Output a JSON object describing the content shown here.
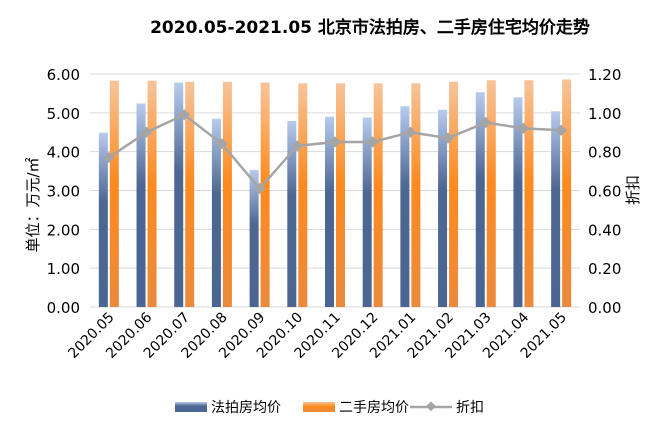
{
  "chart_data": {
    "type": "bar",
    "title": "2020.05-2021.05 北京市法拍房、二手房住宅均价走势",
    "ylabel": "单位：万元/㎡",
    "y2label": "折扣",
    "ylim": [
      0,
      6
    ],
    "y2lim": [
      0,
      1.2
    ],
    "yticks": [
      "0.00",
      "1.00",
      "2.00",
      "3.00",
      "4.00",
      "5.00",
      "6.00"
    ],
    "y2ticks": [
      "0.00",
      "0.20",
      "0.40",
      "0.60",
      "0.80",
      "1.00",
      "1.20"
    ],
    "grid": true,
    "legend_position": "bottom",
    "categories": [
      "2020.05",
      "2020.06",
      "2020.07",
      "2020.08",
      "2020.09",
      "2020.10",
      "2020.11",
      "2020.12",
      "2021.01",
      "2021.02",
      "2021.03",
      "2021.04",
      "2021.05"
    ],
    "series": [
      {
        "name": "法拍房均价",
        "type": "bar",
        "axis": "left",
        "color": "#4a6591",
        "values": [
          4.49,
          5.24,
          5.78,
          4.85,
          3.53,
          4.79,
          4.9,
          4.88,
          5.17,
          5.08,
          5.53,
          5.4,
          5.04
        ]
      },
      {
        "name": "二手房均价",
        "type": "bar",
        "axis": "left",
        "color": "#ff8a1f",
        "values": [
          5.83,
          5.83,
          5.8,
          5.8,
          5.78,
          5.76,
          5.76,
          5.76,
          5.76,
          5.8,
          5.84,
          5.84,
          5.86
        ]
      },
      {
        "name": "折扣",
        "type": "line",
        "axis": "right",
        "color": "#a5a5a5",
        "values": [
          0.77,
          0.9,
          0.99,
          0.84,
          0.61,
          0.83,
          0.85,
          0.85,
          0.9,
          0.87,
          0.95,
          0.92,
          0.91
        ]
      }
    ]
  }
}
